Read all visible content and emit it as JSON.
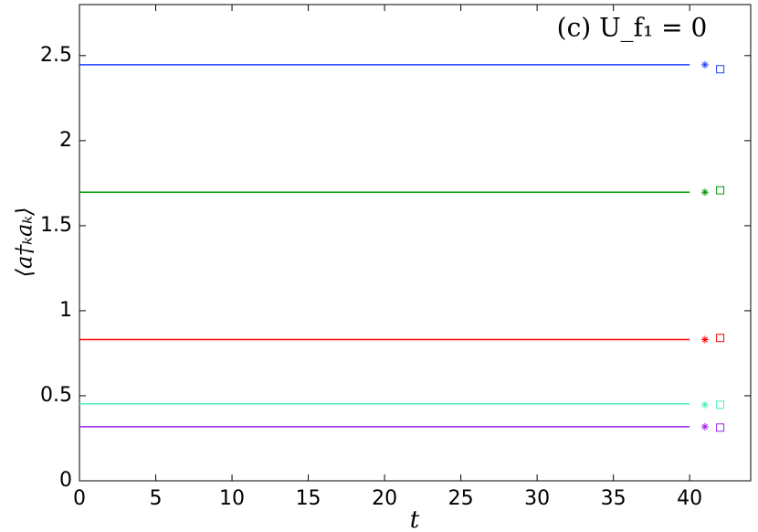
{
  "chart_data": {
    "type": "line",
    "annotation": "(c) U_f₁ = 0",
    "x_label": "t",
    "y_label": "⟨a†ₖaₖ⟩",
    "xlim": [
      0,
      44
    ],
    "xticks": [
      0,
      5,
      10,
      15,
      20,
      25,
      30,
      35,
      40
    ],
    "ylim": [
      0,
      2.8
    ],
    "yticks": [
      0,
      0.5,
      1,
      1.5,
      2,
      2.5
    ],
    "series": [
      {
        "color": "#1f3fff",
        "marker": "none",
        "x": [
          0,
          40
        ],
        "values": [
          2.446,
          2.446
        ]
      },
      {
        "color": "#009900",
        "marker": "none",
        "x": [
          0,
          40
        ],
        "values": [
          1.697,
          1.697
        ]
      },
      {
        "color": "#ff0000",
        "marker": "none",
        "x": [
          0,
          40
        ],
        "values": [
          0.83,
          0.83
        ]
      },
      {
        "color": "#4cf0b4",
        "marker": "none",
        "x": [
          0,
          40
        ],
        "values": [
          0.453,
          0.453
        ]
      },
      {
        "color": "#a020f0",
        "marker": "none",
        "x": [
          0,
          40
        ],
        "values": [
          0.318,
          0.318
        ]
      },
      {
        "color": "#1f3fff",
        "marker": "star",
        "x": [
          41
        ],
        "values": [
          2.446
        ]
      },
      {
        "color": "#009900",
        "marker": "star",
        "x": [
          41
        ],
        "values": [
          1.697
        ]
      },
      {
        "color": "#ff0000",
        "marker": "star",
        "x": [
          41
        ],
        "values": [
          0.83
        ]
      },
      {
        "color": "#4cf0b4",
        "marker": "star",
        "x": [
          41
        ],
        "values": [
          0.447
        ]
      },
      {
        "color": "#a020f0",
        "marker": "star",
        "x": [
          41
        ],
        "values": [
          0.318
        ]
      },
      {
        "color": "#1f3fff",
        "marker": "square",
        "x": [
          42
        ],
        "values": [
          2.42
        ]
      },
      {
        "color": "#009900",
        "marker": "square",
        "x": [
          42
        ],
        "values": [
          1.708
        ]
      },
      {
        "color": "#ff0000",
        "marker": "square",
        "x": [
          42
        ],
        "values": [
          0.84
        ]
      },
      {
        "color": "#4cf0b4",
        "marker": "square",
        "x": [
          42
        ],
        "values": [
          0.447
        ]
      },
      {
        "color": "#a020f0",
        "marker": "square",
        "x": [
          42
        ],
        "values": [
          0.313
        ]
      }
    ]
  }
}
